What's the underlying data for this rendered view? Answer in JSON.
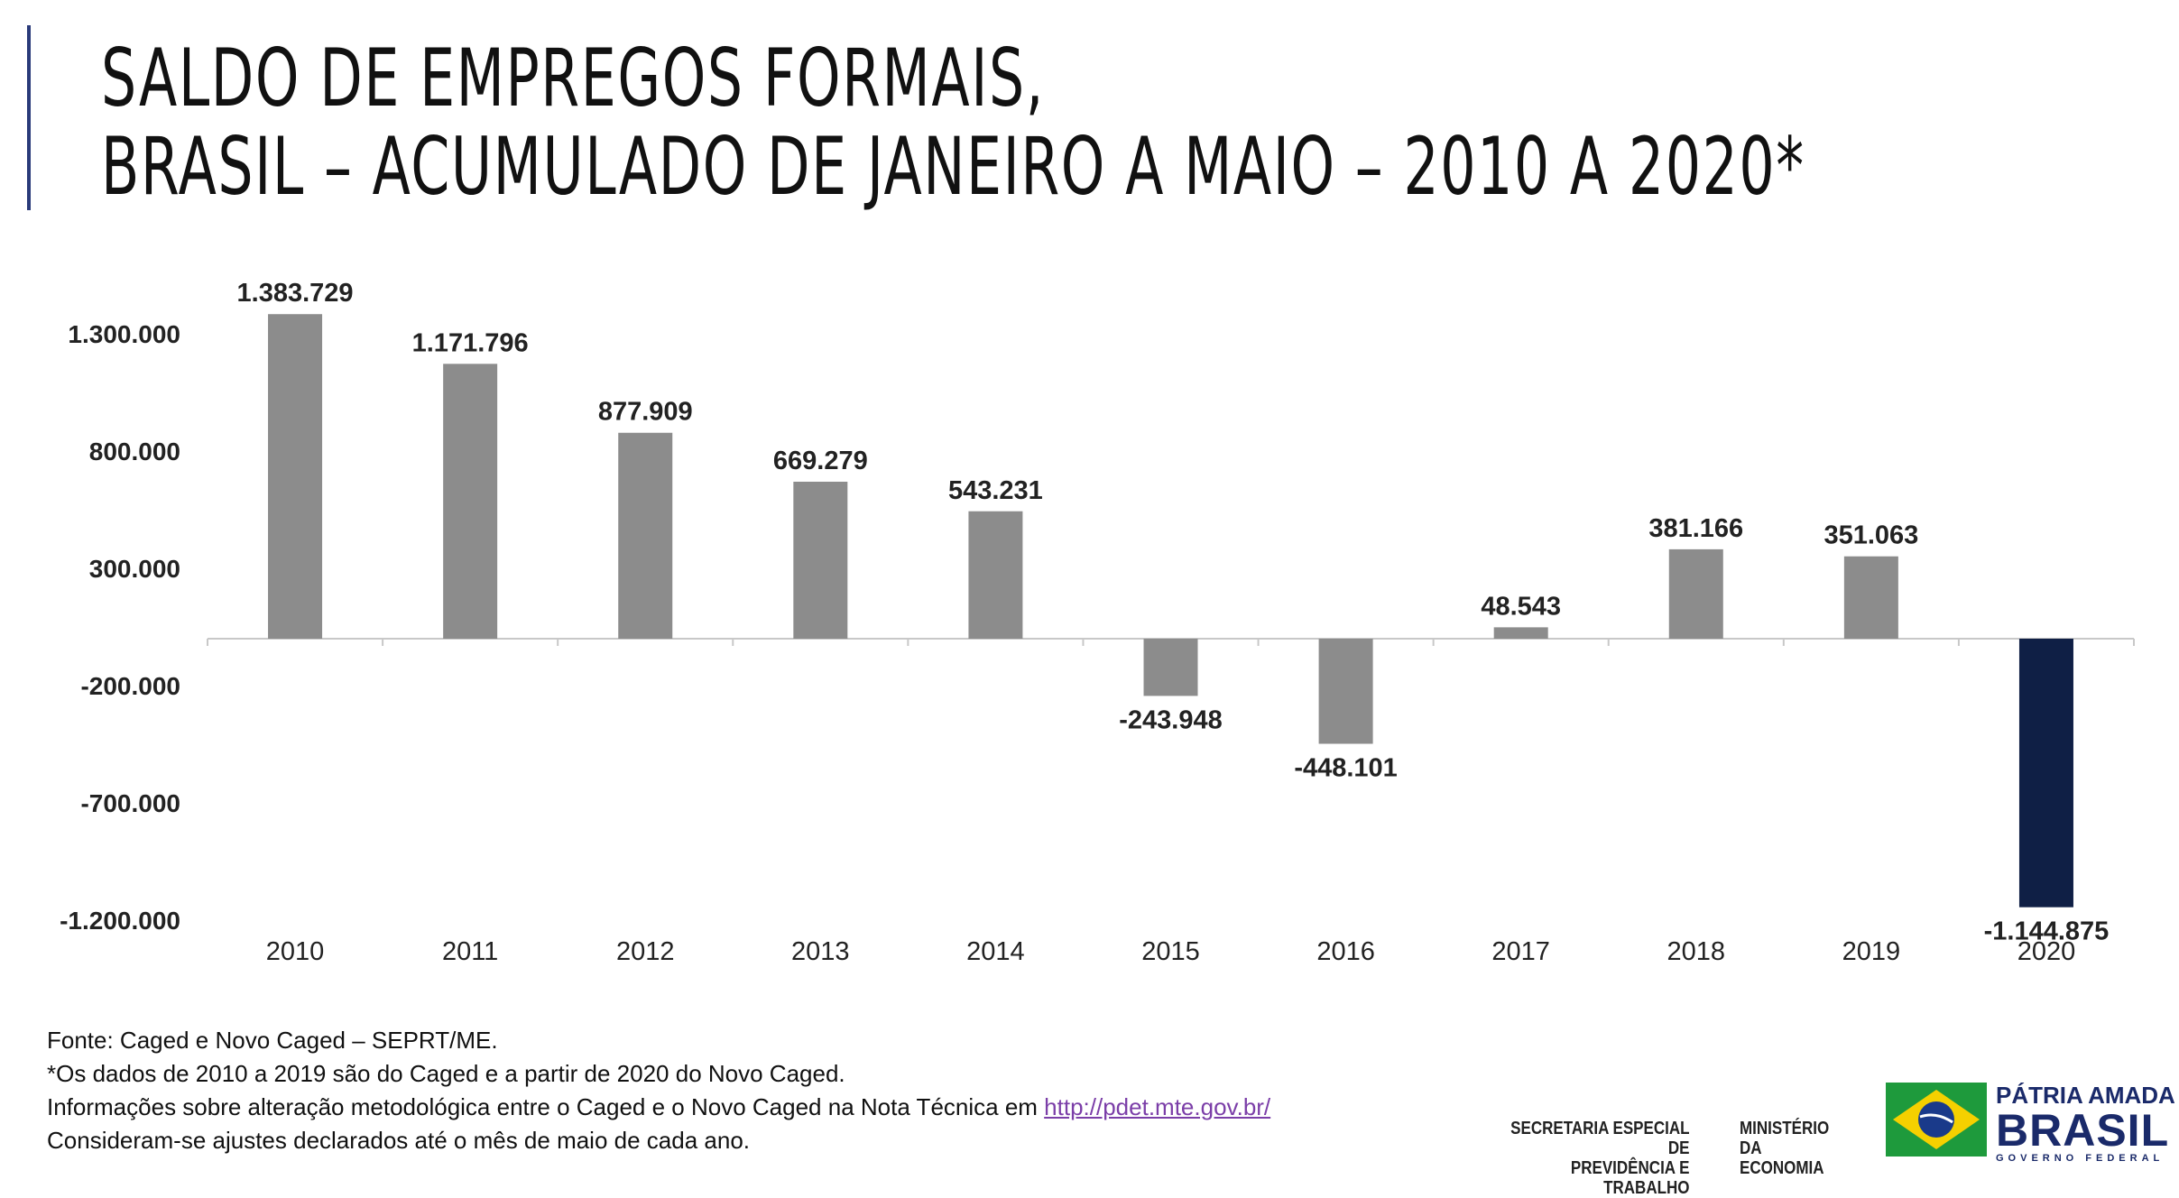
{
  "title": {
    "line1": "SALDO DE EMPREGOS FORMAIS,",
    "line2": "BRASIL – ACUMULADO DE JANEIRO A MAIO – 2010 A 2020*"
  },
  "chart_data": {
    "type": "bar",
    "categories": [
      "2010",
      "2011",
      "2012",
      "2013",
      "2014",
      "2015",
      "2016",
      "2017",
      "2018",
      "2019",
      "2020"
    ],
    "values": [
      1383729,
      1171796,
      877909,
      669279,
      543231,
      -243948,
      -448101,
      48543,
      381166,
      351063,
      -1144875
    ],
    "value_labels": [
      "1.383.729",
      "1.171.796",
      "877.909",
      "669.279",
      "543.231",
      "-243.948",
      "-448.101",
      "48.543",
      "381.166",
      "351.063",
      "-1.144.875"
    ],
    "ylim": [
      -1200000,
      1300000
    ],
    "yticks": [
      1300000,
      800000,
      300000,
      -200000,
      -700000,
      -1200000
    ],
    "ytick_labels": [
      "1.300.000",
      "800.000",
      "300.000",
      "-200.000",
      "-700.000",
      "-1.200.000"
    ],
    "colors": {
      "default": "#8c8c8c",
      "highlight": "#0f1f45"
    },
    "highlight_index": 10,
    "grid": false
  },
  "footer": {
    "source": "Fonte: Caged e Novo Caged – SEPRT/ME.",
    "note1": "*Os dados de 2010 a 2019 são do Caged e a partir de 2020 do Novo Caged.",
    "note2_prefix": "Informações sobre alteração metodológica entre o Caged e o Novo Caged na Nota Técnica em ",
    "note2_link": "http://pdet.mte.gov.br/",
    "note3": "Consideram-se ajustes declarados até o mês de maio de cada ano."
  },
  "logos": {
    "secretaria_line1": "SECRETARIA ESPECIAL DE",
    "secretaria_line2": "PREVIDÊNCIA E TRABALHO",
    "ministerio_line1": "MINISTÉRIO DA",
    "ministerio_line2": "ECONOMIA",
    "patria": "PÁTRIA AMADA",
    "brasil": "BRASIL",
    "governo": "GOVERNO FEDERAL"
  }
}
